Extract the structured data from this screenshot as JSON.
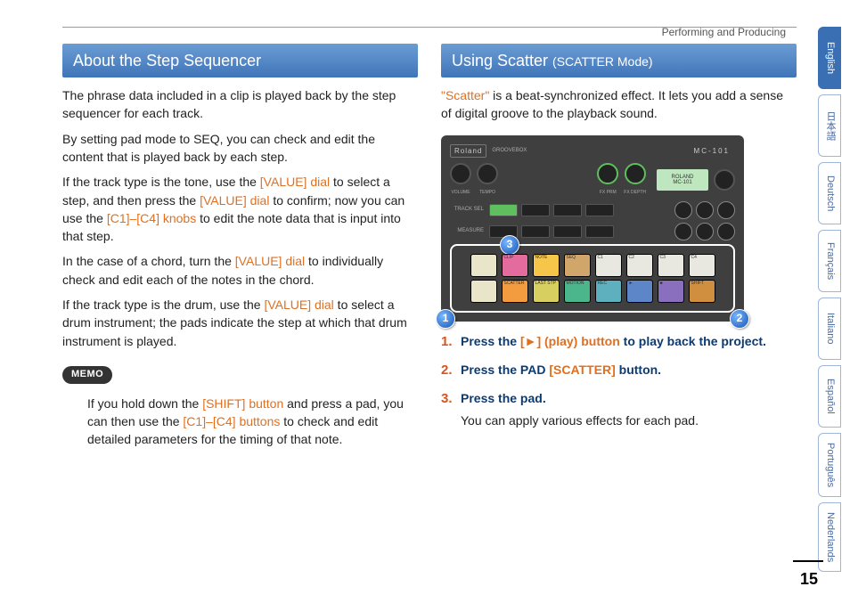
{
  "breadcrumb": "Performing and Producing",
  "pageNumber": "15",
  "langs": [
    "English",
    "日本語",
    "Deutsch",
    "Français",
    "Italiano",
    "Español",
    "Português",
    "Nederlands"
  ],
  "activeLang": 0,
  "left": {
    "title": "About the Step Sequencer",
    "p1": "The phrase data included in a clip is played back by the step sequencer for each track.",
    "p2": "By setting pad mode to SEQ, you can check and edit the content that is played back by each step.",
    "p3a": "If the track type is the tone, use the ",
    "p3b": " to select a step, and then press the ",
    "p3c": " to confirm; now you can use the ",
    "p3d": " to edit the note data that is input into that step.",
    "p4a": "In the case of a chord, turn the ",
    "p4b": " to individually check and edit each of the notes in the chord.",
    "p5a": "If the track type is the drum, use the ",
    "p5b": " to select a drum instrument; the pads indicate the step at which that drum instrument is played.",
    "valueDial": "[VALUE] dial",
    "c1c4knobs": "[C1]–[C4] knobs",
    "memoLabel": "MEMO",
    "memoA": "If you hold down the ",
    "shiftBtn": "[SHIFT] button",
    "memoB": " and press a pad, you can then use the ",
    "c1c4btns": "[C1]–[C4] buttons",
    "memoC": " to check and edit detailed parameters for the timing of that note."
  },
  "right": {
    "titleMain": "Using Scatter ",
    "titleSub": "(SCATTER Mode)",
    "introA": "\"Scatter\"",
    "introB": " is a beat-synchronized effect. It lets you add a sense of digital groove to the playback sound.",
    "step1a": "Press the ",
    "step1btn": "[►] (play) button",
    "step1b": " to play back the project.",
    "step2a": "Press the PAD ",
    "step2btn": "[SCATTER]",
    "step2b": " button.",
    "step3a": "Press the pad.",
    "step3body": "You can apply various effects for each pad."
  },
  "device": {
    "brand": "Roland",
    "subBrand": "GROOVEBOX",
    "model": "MC-101",
    "lcd1": "ROLAND",
    "lcd2": "MC-101",
    "topKnobs": [
      "VOLUME",
      "TEMPO",
      "FX PRM",
      "FX DEPTH"
    ],
    "trackLabels": [
      "TRACK SEL",
      "MEASURE"
    ],
    "callouts": [
      "1",
      "2",
      "3"
    ],
    "padColors": {
      "row1": [
        "#e9e5c8",
        "#e36b9e",
        "#f5c64a",
        "#d0a66b",
        "#e9e8e0",
        "#e9e8e0",
        "#e9e8e0",
        "#e9e8e0"
      ],
      "row2": [
        "#e9e5c8",
        "#f29b3f",
        "#d7cf5f",
        "#4bb58c",
        "#5eb0bf",
        "#5c86c7",
        "#8b6fbf",
        "#cf8f3f"
      ]
    },
    "padTiny": {
      "row1": [
        "",
        "CLIP",
        "NOTE",
        "SEQ",
        "C1",
        "C2",
        "C3",
        "C4"
      ],
      "row2": [
        "",
        "SCATTER",
        "LAST STP",
        "MOTION",
        "REC",
        "►",
        "■",
        "SHIFT"
      ]
    }
  }
}
